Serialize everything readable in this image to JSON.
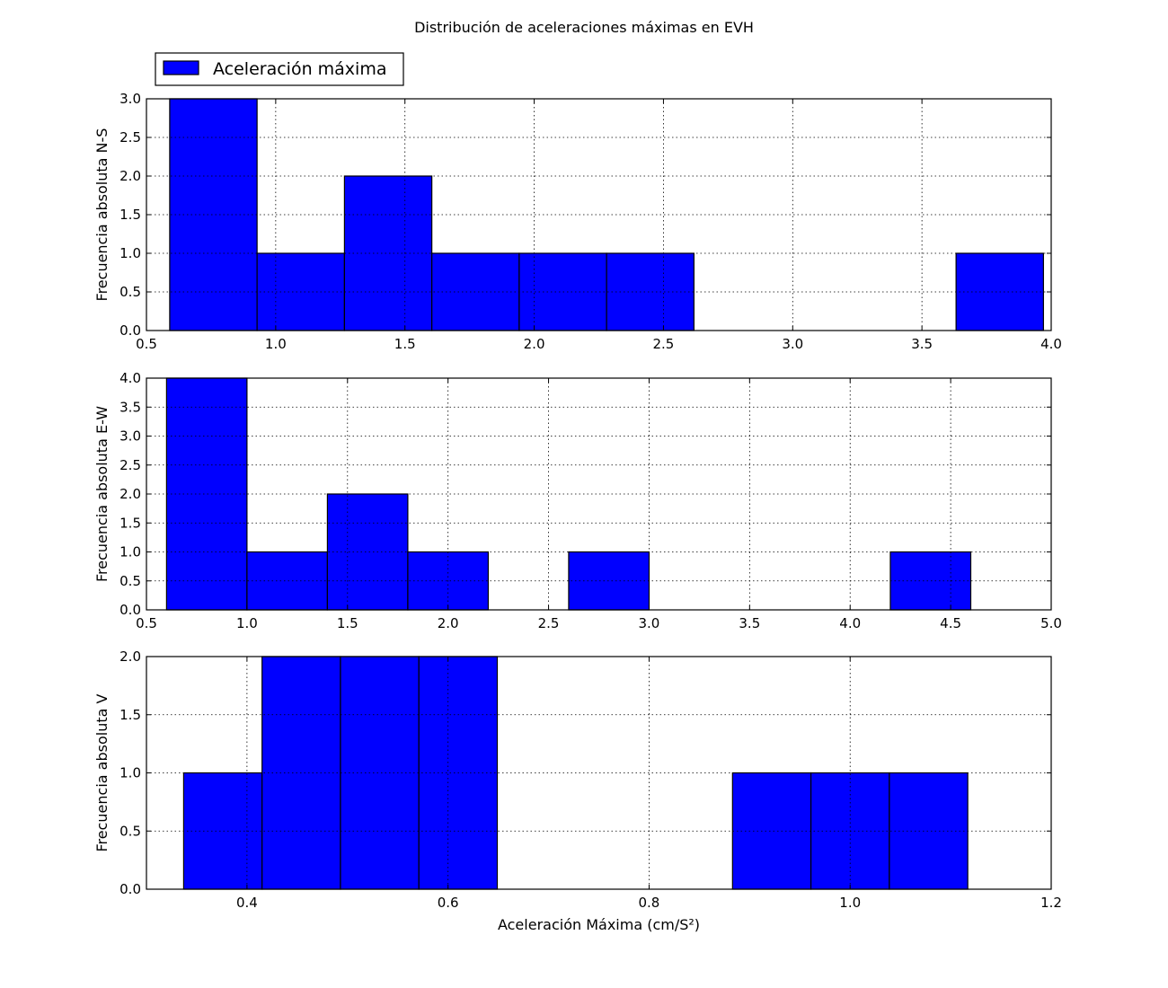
{
  "figure": {
    "title": "Distribución de aceleraciones máximas en EVH",
    "bar_color": "#0000ff",
    "legend": {
      "label": "Aceleración máxima",
      "placement": "top-left, above first plot"
    }
  },
  "chart_data": [
    {
      "type": "bar",
      "subtype": "histogram",
      "ylabel": "Frecuencia absoluta N-S",
      "xlabel": "",
      "xlim": [
        0.5,
        4.0
      ],
      "ylim": [
        0.0,
        3.0
      ],
      "xticks": [
        0.5,
        1.0,
        1.5,
        2.0,
        2.5,
        3.0,
        3.5,
        4.0
      ],
      "xtick_labels": [
        "0.5",
        "1.0",
        "1.5",
        "2.0",
        "2.5",
        "3.0",
        "3.5",
        "4.0"
      ],
      "yticks": [
        0.0,
        0.5,
        1.0,
        1.5,
        2.0,
        2.5,
        3.0
      ],
      "ytick_labels": [
        "0.0",
        "0.5",
        "1.0",
        "1.5",
        "2.0",
        "2.5",
        "3.0"
      ],
      "grid": true,
      "bins": [
        {
          "x0": 0.59,
          "x1": 0.928,
          "count": 3
        },
        {
          "x0": 0.928,
          "x1": 1.266,
          "count": 1
        },
        {
          "x0": 1.266,
          "x1": 1.604,
          "count": 2
        },
        {
          "x0": 1.604,
          "x1": 1.942,
          "count": 1
        },
        {
          "x0": 1.942,
          "x1": 2.28,
          "count": 1
        },
        {
          "x0": 2.28,
          "x1": 2.618,
          "count": 1
        },
        {
          "x0": 2.618,
          "x1": 2.956,
          "count": 0
        },
        {
          "x0": 2.956,
          "x1": 3.294,
          "count": 0
        },
        {
          "x0": 3.294,
          "x1": 3.632,
          "count": 0
        },
        {
          "x0": 3.632,
          "x1": 3.97,
          "count": 1
        }
      ]
    },
    {
      "type": "bar",
      "subtype": "histogram",
      "ylabel": "Frecuencia absoluta E-W",
      "xlabel": "",
      "xlim": [
        0.5,
        5.0
      ],
      "ylim": [
        0.0,
        4.0
      ],
      "xticks": [
        0.5,
        1.0,
        1.5,
        2.0,
        2.5,
        3.0,
        3.5,
        4.0,
        4.5,
        5.0
      ],
      "xtick_labels": [
        "0.5",
        "1.0",
        "1.5",
        "2.0",
        "2.5",
        "3.0",
        "3.5",
        "4.0",
        "4.5",
        "5.0"
      ],
      "yticks": [
        0.0,
        0.5,
        1.0,
        1.5,
        2.0,
        2.5,
        3.0,
        3.5,
        4.0
      ],
      "ytick_labels": [
        "0.0",
        "0.5",
        "1.0",
        "1.5",
        "2.0",
        "2.5",
        "3.0",
        "3.5",
        "4.0"
      ],
      "grid": true,
      "bins": [
        {
          "x0": 0.6,
          "x1": 1.0,
          "count": 4
        },
        {
          "x0": 1.0,
          "x1": 1.4,
          "count": 1
        },
        {
          "x0": 1.4,
          "x1": 1.8,
          "count": 2
        },
        {
          "x0": 1.8,
          "x1": 2.2,
          "count": 1
        },
        {
          "x0": 2.2,
          "x1": 2.6,
          "count": 0
        },
        {
          "x0": 2.6,
          "x1": 3.0,
          "count": 1
        },
        {
          "x0": 3.0,
          "x1": 3.4,
          "count": 0
        },
        {
          "x0": 3.4,
          "x1": 3.8,
          "count": 0
        },
        {
          "x0": 3.8,
          "x1": 4.2,
          "count": 0
        },
        {
          "x0": 4.2,
          "x1": 4.6,
          "count": 1
        }
      ]
    },
    {
      "type": "bar",
      "subtype": "histogram",
      "ylabel": "Frecuencia absoluta V",
      "xlabel": "Aceleración Máxima (cm/S²)",
      "xlim": [
        0.3,
        1.2
      ],
      "ylim": [
        0.0,
        2.0
      ],
      "xticks": [
        0.4,
        0.6,
        0.8,
        1.0,
        1.2
      ],
      "xtick_labels": [
        "0.4",
        "0.6",
        "0.8",
        "1.0",
        "1.2"
      ],
      "yticks": [
        0.0,
        0.5,
        1.0,
        1.5,
        2.0
      ],
      "ytick_labels": [
        "0.0",
        "0.5",
        "1.0",
        "1.5",
        "2.0"
      ],
      "grid": true,
      "bins": [
        {
          "x0": 0.337,
          "x1": 0.415,
          "count": 1
        },
        {
          "x0": 0.415,
          "x1": 0.493,
          "count": 2
        },
        {
          "x0": 0.493,
          "x1": 0.571,
          "count": 2
        },
        {
          "x0": 0.571,
          "x1": 0.649,
          "count": 2
        },
        {
          "x0": 0.649,
          "x1": 0.727,
          "count": 0
        },
        {
          "x0": 0.727,
          "x1": 0.805,
          "count": 0
        },
        {
          "x0": 0.805,
          "x1": 0.883,
          "count": 0
        },
        {
          "x0": 0.883,
          "x1": 0.961,
          "count": 1
        },
        {
          "x0": 0.961,
          "x1": 1.039,
          "count": 1
        },
        {
          "x0": 1.039,
          "x1": 1.117,
          "count": 1
        }
      ]
    }
  ]
}
